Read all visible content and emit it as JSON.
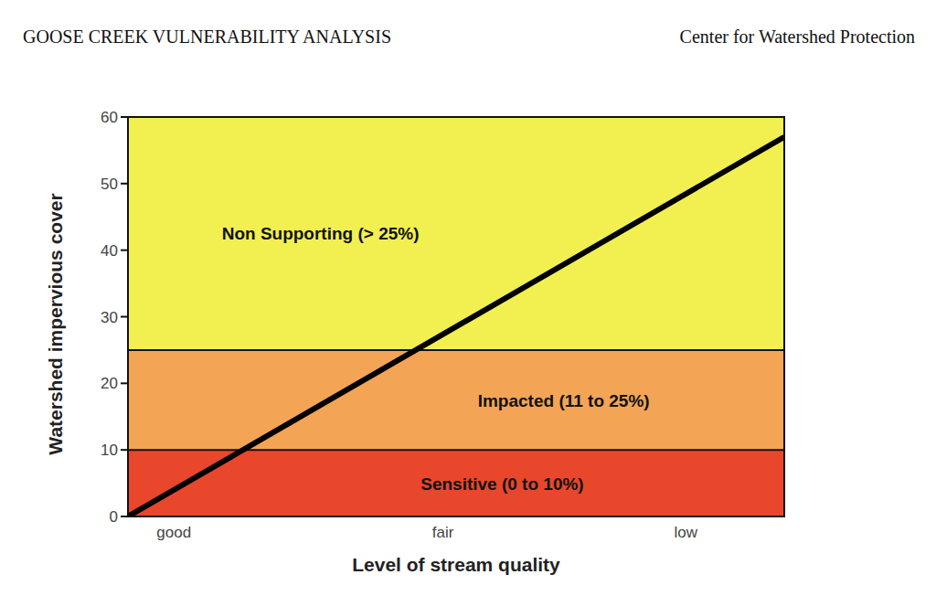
{
  "header": {
    "title": "GOOSE CREEK VULNERABILITY ANALYSIS",
    "organization": "Center for Watershed Protection"
  },
  "chart_data": {
    "type": "line",
    "xlabel": "Level of stream quality",
    "ylabel": "Watershed impervious cover",
    "x": [
      0,
      100
    ],
    "values": [
      0,
      57
    ],
    "color": "#000000",
    "xlim": [
      0,
      100
    ],
    "xticks": [
      {
        "value": 7,
        "label": "good"
      },
      {
        "value": 48,
        "label": "fair"
      },
      {
        "value": 85,
        "label": "low"
      }
    ],
    "ylim": [
      0,
      60
    ],
    "yticks": [
      0,
      10,
      20,
      30,
      40,
      50,
      60
    ],
    "grid": false,
    "bands": [
      {
        "label": "Sensitive (0 to 10%)",
        "from": 0,
        "to": 10,
        "color": "#e8472c"
      },
      {
        "label": "Impacted (11 to 25%)",
        "from": 10,
        "to": 25,
        "color": "#f4a455"
      },
      {
        "label": "Non Supporting (> 25%)",
        "from": 25,
        "to": 60,
        "color": "#f2f050"
      }
    ]
  }
}
